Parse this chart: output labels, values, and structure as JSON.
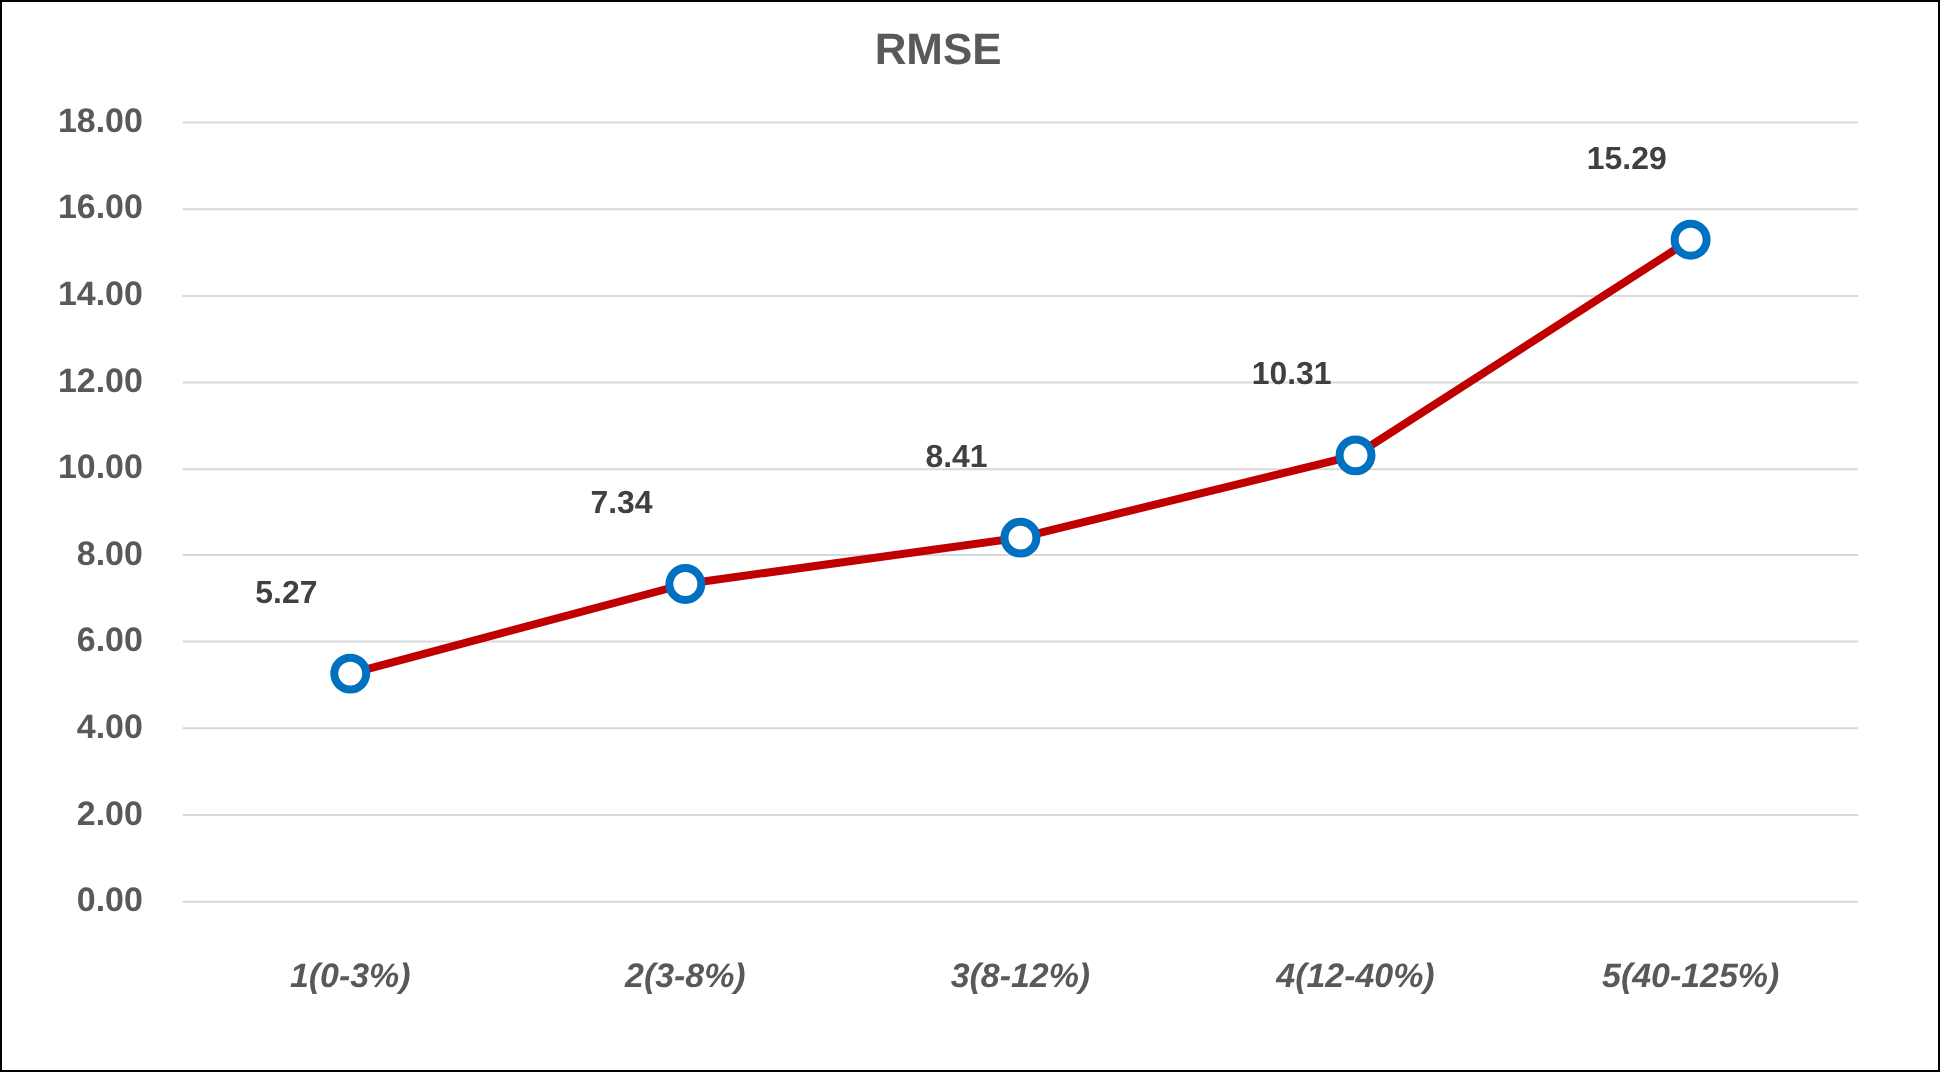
{
  "chart_data": {
    "type": "line",
    "title": "RMSE",
    "categories": [
      "1(0-3%)",
      "2(3-8%)",
      "3(8-12%)",
      "4(12-40%)",
      "5(40-125%)"
    ],
    "series": [
      {
        "color": "#c00000",
        "values": [
          5.27,
          7.34,
          8.41,
          10.31,
          15.29
        ]
      }
    ],
    "ylim": [
      0,
      18
    ],
    "yticks": [
      {
        "value": 0,
        "label": "0.00"
      },
      {
        "value": 2,
        "label": "2.00"
      },
      {
        "value": 4,
        "label": "4.00"
      },
      {
        "value": 6,
        "label": "6.00"
      },
      {
        "value": 8,
        "label": "8.00"
      },
      {
        "value": 10,
        "label": "10.00"
      },
      {
        "value": 12,
        "label": "12.00"
      },
      {
        "value": 14,
        "label": "14.00"
      },
      {
        "value": 16,
        "label": "16.00"
      },
      {
        "value": 18,
        "label": "18.00"
      }
    ],
    "grid": "y",
    "legend": false,
    "marker": "circle",
    "line_style": "solid",
    "data_labels": true
  }
}
